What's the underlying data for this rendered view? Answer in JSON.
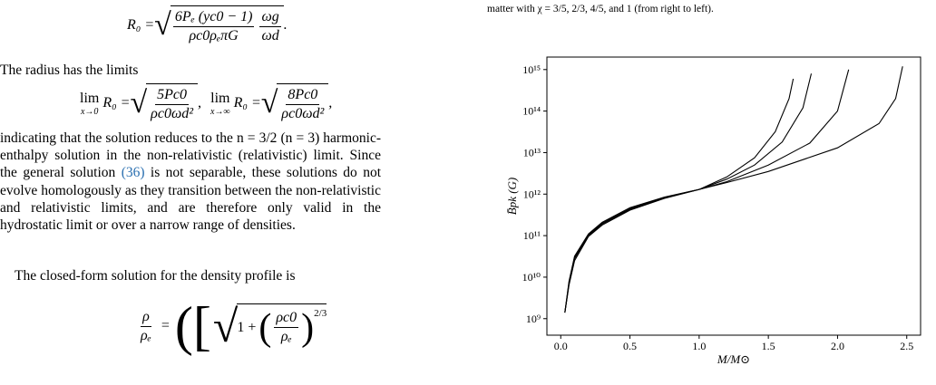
{
  "equations": [
    {
      "lhs": "R₀ =",
      "num": "6Pₑ (yc0 − 1)",
      "den": "ρc0ρₑπG",
      "num2": "ωg",
      "den2": "ωd",
      "end": "."
    },
    {
      "parts": [
        {
          "lim": "lim",
          "sub": "x→0",
          "lhs": "R₀ =",
          "num": "5Pc0",
          "den": "ρc0ωd²",
          "end": ","
        },
        {
          "lim": "lim",
          "sub": "x→∞",
          "lhs": "R₀ =",
          "num": "8Pc0",
          "den": "ρc0ωd²",
          "end": ","
        }
      ]
    },
    {
      "num": "ρ",
      "den": "ρₑ",
      "eq": "=",
      "open": "(",
      "bracket": "[",
      "one": "1 +",
      "num2": "ρc0",
      "den2": "ρₑ",
      "exp": "2/3"
    }
  ],
  "text": {
    "limits_intro": "The radius has the limits",
    "para_a": "indicating that the solution reduces to the n = 3/2 (n = 3) harmonic-enthalpy solution in the non-relativistic (relativistic) limit. Since the general solution ",
    "para_ref": "(36)",
    "para_b": " is not separable, these solutions do not evolve homologously as they transition between the non-relativistic and relativistic limits, and are therefore only valid in the hydrostatic limit or over a narrow range of densities.",
    "closed_form": "The closed-form solution for the density profile is",
    "caption": "matter with χ = 3/5, 2/3, 4/5, and 1 (from right to left)."
  },
  "chart_data": {
    "type": "line",
    "x_label": "M/M⊙",
    "y_label": "B̄pk (G)",
    "log_y": true,
    "grid": false,
    "xlim": [
      -0.1,
      2.6
    ],
    "ylim": [
      400000000,
      2000000000000000
    ],
    "xticks": [
      {
        "value": 0,
        "label": "0.0"
      },
      0.5,
      {
        "value": 1,
        "label": "1.0"
      },
      1.5,
      {
        "value": 2,
        "label": "2.0"
      },
      2.5
    ],
    "yticks": [
      {
        "value": 1000000000,
        "label": "10⁹"
      },
      {
        "value": 10000000000,
        "label": "10¹⁰"
      },
      {
        "value": 100000000000,
        "label": "10¹¹"
      },
      {
        "value": 1000000000000,
        "label": "10¹²"
      },
      {
        "value": 10000000000000,
        "label": "10¹³"
      },
      {
        "value": 100000000000000,
        "label": "10¹⁴"
      },
      {
        "value": 1000000000000000,
        "label": "10¹⁵"
      }
    ],
    "series": [
      {
        "color": "#000000",
        "x": [
          0.03,
          0.06,
          0.1,
          0.2,
          0.3,
          0.5,
          0.75,
          1.0,
          1.2,
          1.4,
          1.55,
          1.65,
          1.68
        ],
        "values": [
          1400000000,
          8000000000,
          32000000000,
          110000000000,
          210000000000,
          470000000000,
          850000000000,
          1300000000000,
          2600000000000,
          7500000000000,
          32000000000000,
          200000000000000,
          600000000000000
        ]
      },
      {
        "color": "#000000",
        "x": [
          0.03,
          0.06,
          0.1,
          0.2,
          0.3,
          0.5,
          0.75,
          1.0,
          1.2,
          1.4,
          1.6,
          1.75,
          1.81
        ],
        "values": [
          1400000000,
          7500000000,
          30000000000,
          105000000000,
          200000000000,
          450000000000,
          830000000000,
          1300000000000,
          2300000000000,
          5000000000000,
          18000000000000,
          120000000000000,
          800000000000000
        ]
      },
      {
        "color": "#000000",
        "x": [
          0.03,
          0.06,
          0.1,
          0.2,
          0.3,
          0.5,
          0.75,
          1.0,
          1.2,
          1.5,
          1.8,
          2.0,
          2.08
        ],
        "values": [
          1400000000,
          7000000000,
          28000000000,
          100000000000,
          190000000000,
          430000000000,
          810000000000,
          1300000000000,
          2000000000000,
          5000000000000,
          17000000000000,
          100000000000000,
          1000000000000000
        ]
      },
      {
        "color": "#000000",
        "x": [
          0.03,
          0.06,
          0.1,
          0.2,
          0.3,
          0.5,
          0.75,
          1.0,
          1.2,
          1.5,
          2.0,
          2.3,
          2.42,
          2.47
        ],
        "values": [
          1400000000,
          6500000000,
          25000000000,
          95000000000,
          180000000000,
          410000000000,
          790000000000,
          1300000000000,
          1900000000000,
          3500000000000,
          13000000000000,
          50000000000000,
          200000000000000,
          1200000000000000
        ]
      }
    ]
  }
}
